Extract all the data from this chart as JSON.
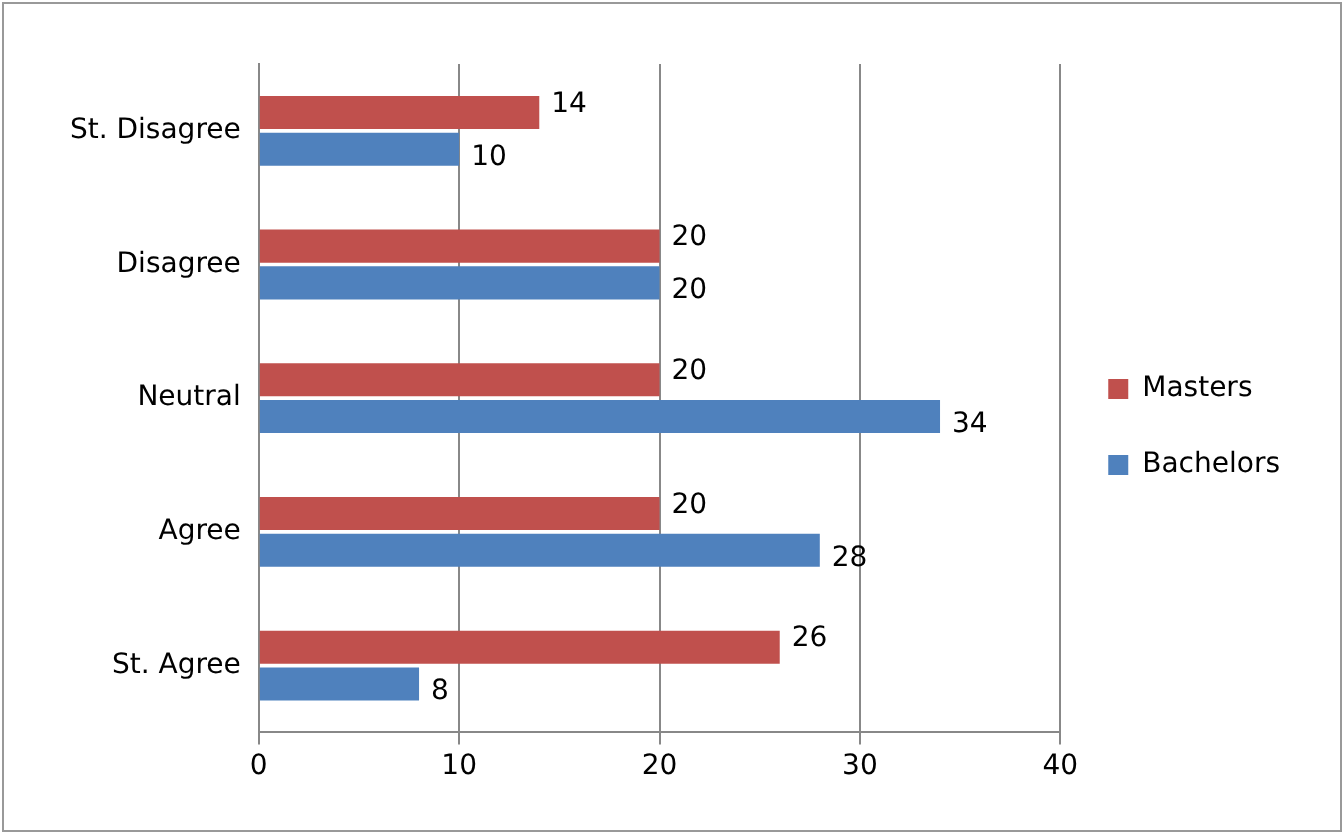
{
  "chart_data": {
    "type": "bar",
    "orientation": "horizontal",
    "categories": [
      "St. Disagree",
      "Disagree",
      "Neutral",
      "Agree",
      "St. Agree"
    ],
    "series": [
      {
        "name": "Masters",
        "color": "#c0504d",
        "values": [
          14,
          20,
          20,
          20,
          26
        ]
      },
      {
        "name": "Bachelors",
        "color": "#4f81bd",
        "values": [
          10,
          20,
          34,
          28,
          8
        ]
      }
    ],
    "xlim": [
      0,
      40
    ],
    "xticks": [
      0,
      10,
      20,
      30,
      40
    ],
    "grid": "x",
    "legend": "right",
    "data_labels": true
  }
}
